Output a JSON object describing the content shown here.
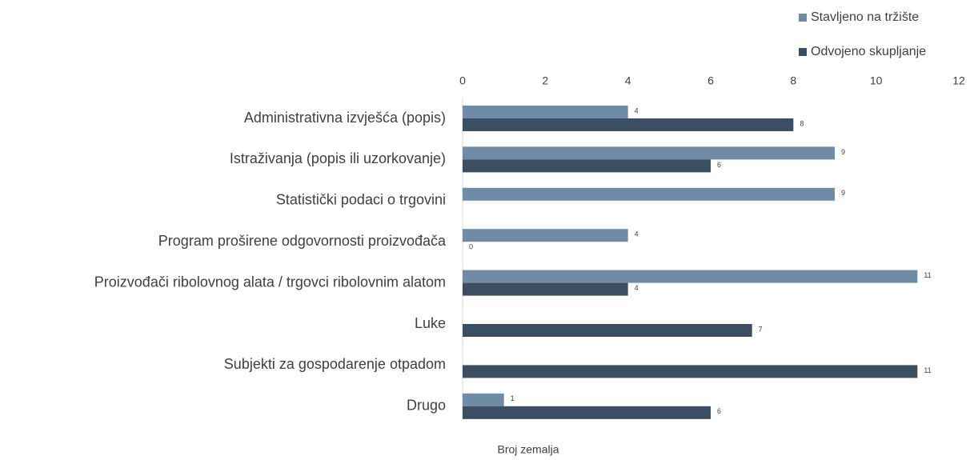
{
  "chart_data": {
    "type": "hbar",
    "xlabel": "Broj zemalja",
    "categories": [
      "Administrativna izvješća (popis)",
      "Istraživanja (popis ili uzorkovanje)",
      "Statistički podaci o trgovini",
      "Program proširene odgovornosti proizvođača",
      "Proizvođači ribolovnog alata / trgovci ribolovnim alatom",
      "Luke",
      "Subjekti za gospodarenje otpadom",
      "Drugo"
    ],
    "series": [
      {
        "name": "Stavljeno na tržište",
        "color": "#6f8ba6",
        "values": [
          4,
          9,
          9,
          4,
          11,
          null,
          null,
          1
        ]
      },
      {
        "name": "Odvojeno skupljanje",
        "color": "#3c4e62",
        "values": [
          8,
          6,
          null,
          0,
          4,
          7,
          11,
          6
        ]
      }
    ],
    "xlim": [
      0,
      12
    ],
    "xticks": [
      0,
      2,
      4,
      6,
      8,
      10,
      12
    ],
    "legend": "top-right"
  }
}
